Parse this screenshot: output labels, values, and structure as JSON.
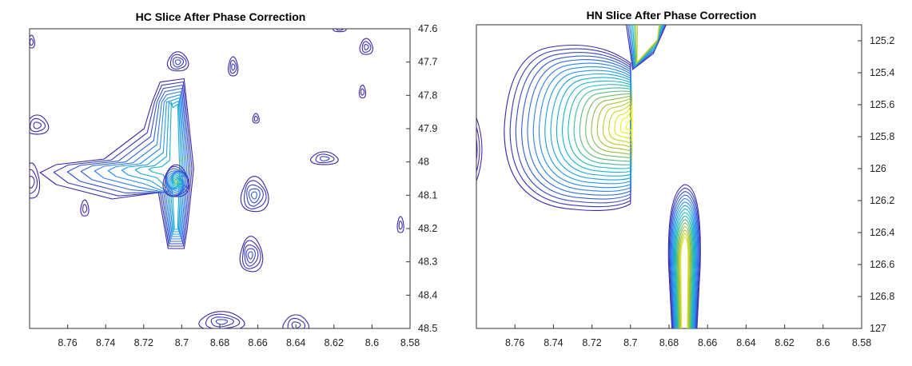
{
  "chart_data": [
    {
      "type": "contour",
      "title": "HC Slice After Phase Correction",
      "xlabel": "",
      "ylabel": "",
      "xlim": [
        8.78,
        8.58
      ],
      "ylim": [
        47.6,
        48.5
      ],
      "x_ticks": [
        "8.76",
        "8.74",
        "8.72",
        "8.7",
        "8.68",
        "8.66",
        "8.64",
        "8.62",
        "8.6",
        "8.58"
      ],
      "y_ticks": [
        "47.6",
        "47.7",
        "47.8",
        "47.9",
        "48",
        "48.1",
        "48.2",
        "48.3",
        "48.4",
        "48.5"
      ],
      "y_axis_side": "right",
      "peaks": [
        {
          "x": 8.703,
          "y": 48.06,
          "levels": 14
        },
        {
          "x": 8.662,
          "y": 48.1,
          "levels": 5
        },
        {
          "x": 8.702,
          "y": 47.7,
          "levels": 4
        },
        {
          "x": 8.625,
          "y": 47.99,
          "levels": 3
        },
        {
          "x": 8.664,
          "y": 48.28,
          "levels": 5
        }
      ]
    },
    {
      "type": "contour",
      "title": "HN Slice After Phase Correction",
      "xlabel": "",
      "ylabel": "",
      "xlim": [
        8.78,
        8.58
      ],
      "ylim": [
        125.1,
        127.0
      ],
      "x_ticks": [
        "8.76",
        "8.74",
        "8.72",
        "8.7",
        "8.68",
        "8.66",
        "8.64",
        "8.62",
        "8.6",
        "8.58"
      ],
      "y_ticks": [
        "125.2",
        "125.4",
        "125.6",
        "125.8",
        "126",
        "126.2",
        "126.4",
        "126.6",
        "126.8",
        "127"
      ],
      "y_axis_side": "right",
      "peaks": [
        {
          "x": 8.703,
          "y": 125.72,
          "levels": 22
        },
        {
          "x": 8.673,
          "y": 126.38,
          "levels": 16
        },
        {
          "x": 8.692,
          "y": 125.15,
          "levels": 8
        }
      ]
    }
  ]
}
